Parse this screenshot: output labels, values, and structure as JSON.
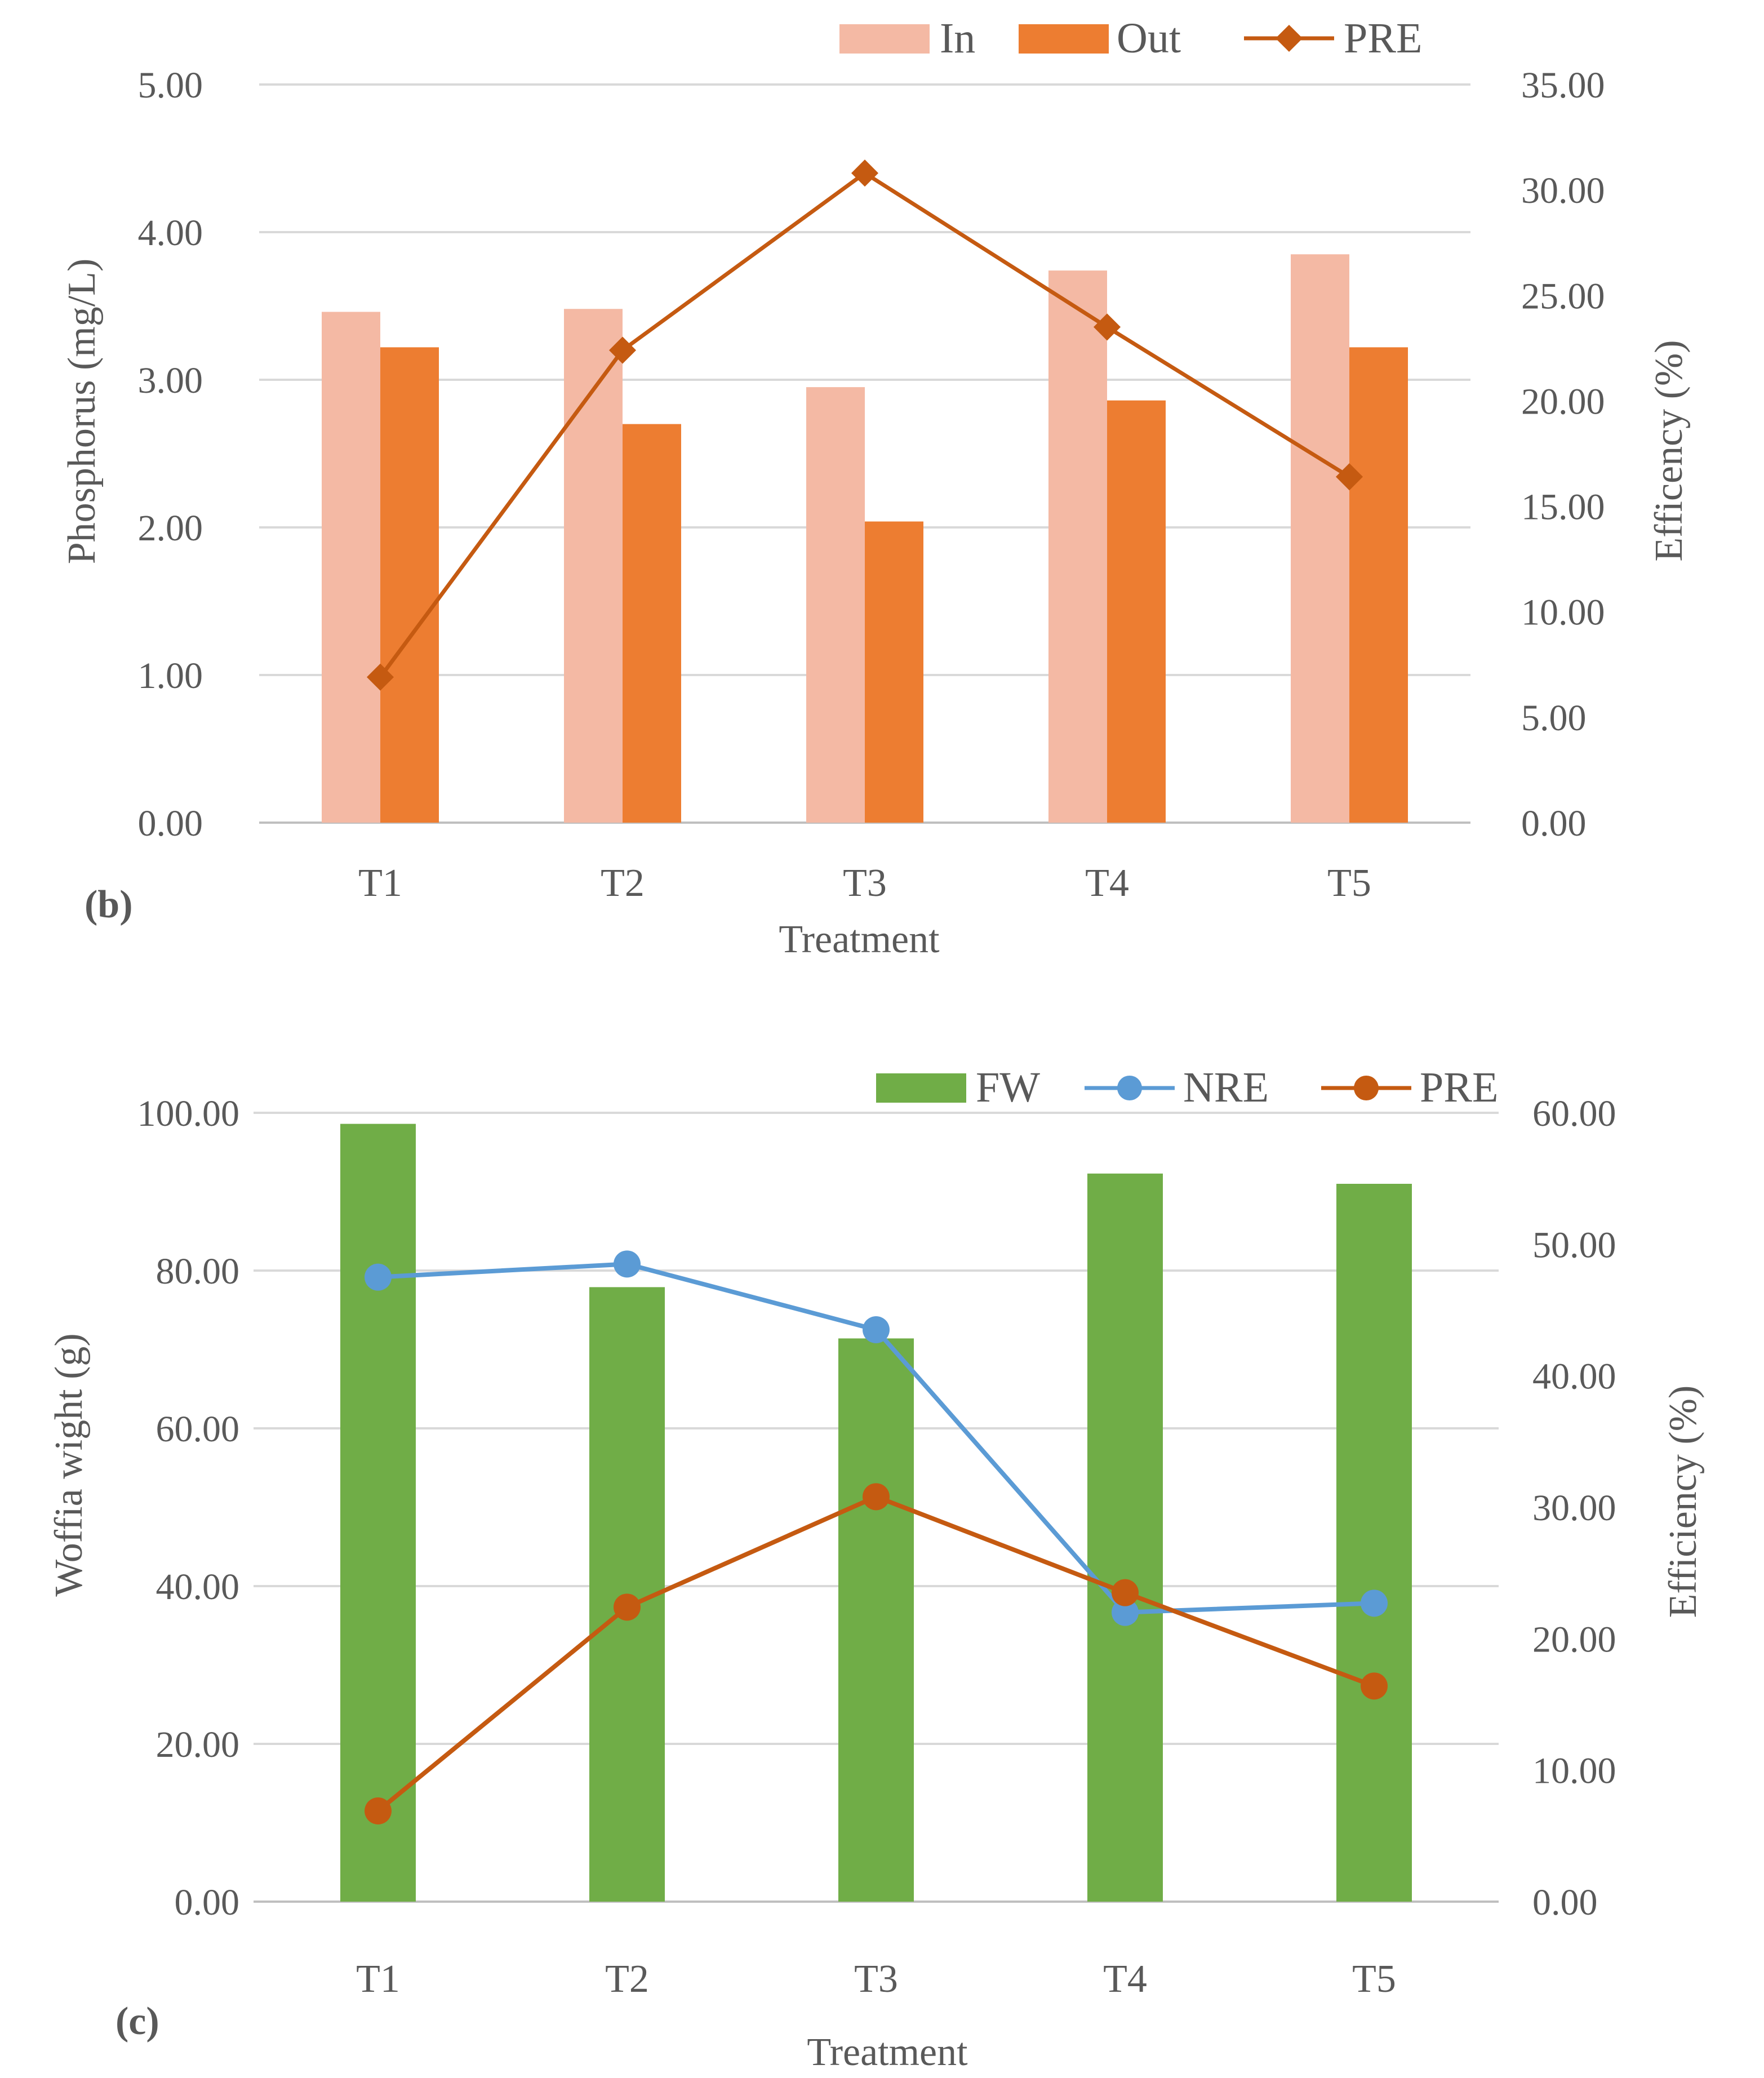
{
  "colors": {
    "in": "#f4b9a4",
    "out": "#ed7d31",
    "pre_b": "#c55a11",
    "fw": "#70ad47",
    "nre": "#5b9bd5",
    "pre_c": "#c55a11"
  },
  "chart_data": [
    {
      "type": "bar",
      "panel_label": "(b)",
      "title": "",
      "xlabel": "Treatment",
      "ylabel": "Phosphorus (mg/L)",
      "y2label": "Efficency (%)",
      "categories": [
        "T1",
        "T2",
        "T3",
        "T4",
        "T5"
      ],
      "ylim": [
        0,
        5
      ],
      "y2lim": [
        0,
        35
      ],
      "yticks": [
        "0.00",
        "1.00",
        "2.00",
        "3.00",
        "4.00",
        "5.00"
      ],
      "y2ticks": [
        "0.00",
        "5.00",
        "10.00",
        "15.00",
        "20.00",
        "25.00",
        "30.00",
        "35.00"
      ],
      "legend": [
        "In",
        "Out",
        "PRE"
      ],
      "legend_position": "top-right",
      "grid": true,
      "series": [
        {
          "name": "In",
          "kind": "bar",
          "axis": "left",
          "values": [
            3.46,
            3.48,
            2.95,
            3.74,
            3.85
          ]
        },
        {
          "name": "Out",
          "kind": "bar",
          "axis": "left",
          "values": [
            3.22,
            2.7,
            2.04,
            2.86,
            3.22
          ]
        },
        {
          "name": "PRE",
          "kind": "line",
          "marker": "diamond",
          "axis": "right",
          "values": [
            6.9,
            22.4,
            30.8,
            23.5,
            16.4
          ]
        }
      ]
    },
    {
      "type": "bar",
      "panel_label": "(c)",
      "title": "",
      "xlabel": "Treatment",
      "ylabel": "Woffia wight (g)",
      "y2label": "Efficiency (%)",
      "categories": [
        "T1",
        "T2",
        "T3",
        "T4",
        "T5"
      ],
      "ylim": [
        0,
        100
      ],
      "y2lim": [
        0,
        60
      ],
      "yticks": [
        "0.00",
        "20.00",
        "40.00",
        "60.00",
        "80.00",
        "100.00"
      ],
      "y2ticks": [
        "0.00",
        "10.00",
        "20.00",
        "30.00",
        "40.00",
        "50.00",
        "60.00"
      ],
      "legend": [
        "FW",
        "NRE",
        "PRE"
      ],
      "legend_position": "top-right",
      "grid": true,
      "series": [
        {
          "name": "FW",
          "kind": "bar",
          "axis": "left",
          "values": [
            98.6,
            77.9,
            71.4,
            92.3,
            91.0
          ]
        },
        {
          "name": "NRE",
          "kind": "line",
          "marker": "circle",
          "axis": "right",
          "values": [
            47.5,
            48.5,
            43.5,
            22.0,
            22.7
          ]
        },
        {
          "name": "PRE",
          "kind": "line",
          "marker": "circle",
          "axis": "right",
          "values": [
            6.9,
            22.4,
            30.8,
            23.5,
            16.4
          ]
        }
      ]
    }
  ]
}
